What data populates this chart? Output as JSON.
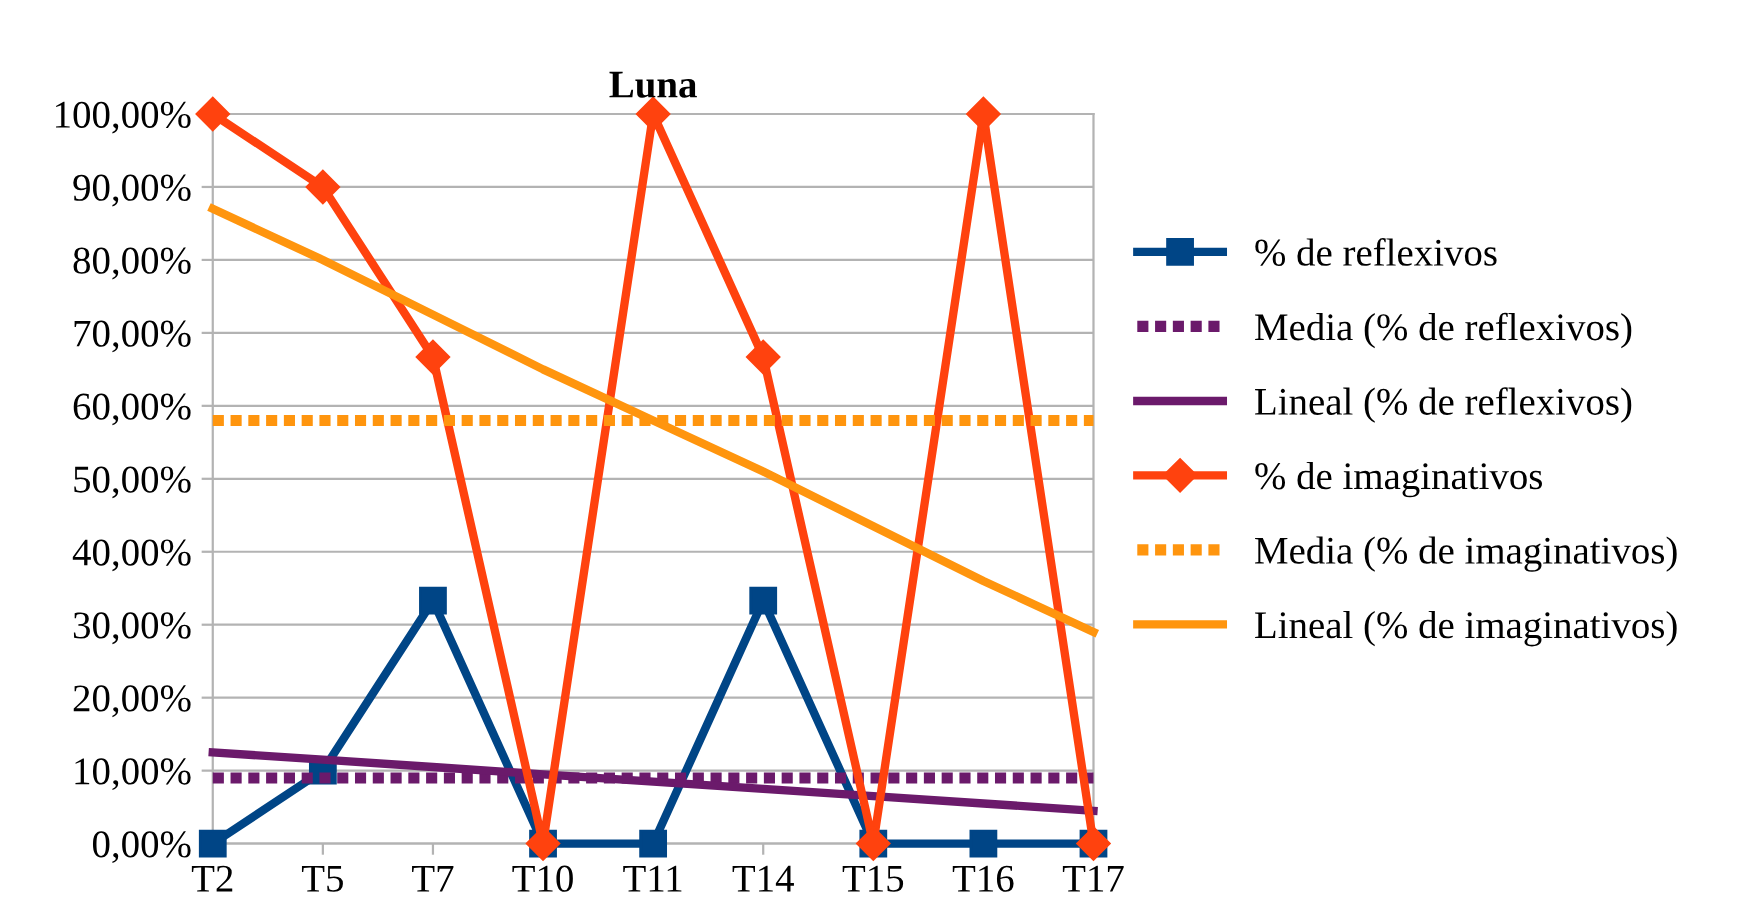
{
  "chart_data": {
    "type": "line",
    "title": "Luna",
    "categories": [
      "T2",
      "T5",
      "T7",
      "T10",
      "T11",
      "T14",
      "T15",
      "T16",
      "T17"
    ],
    "series": [
      {
        "name": "% de reflexivos",
        "color": "#004586",
        "marker": "square",
        "line_style": "solid",
        "values": [
          0,
          10,
          33.3,
          0,
          0,
          33.3,
          0,
          0,
          0
        ]
      },
      {
        "name": "Media (% de reflexivos)",
        "color": "#6b1a6b",
        "marker": "none",
        "line_style": "dotted",
        "values": [
          9,
          9,
          9,
          9,
          9,
          9,
          9,
          9,
          9
        ]
      },
      {
        "name": "Lineal (% de reflexivos)",
        "color": "#6b1a6b",
        "marker": "none",
        "line_style": "solid",
        "values": [
          12.5,
          11.5,
          10.5,
          9.5,
          8.5,
          7.5,
          6.5,
          5.5,
          4.5
        ]
      },
      {
        "name": "% de imaginativos",
        "color": "#ff420e",
        "marker": "diamond",
        "line_style": "solid",
        "values": [
          100,
          90,
          66.7,
          0,
          100,
          66.7,
          0,
          100,
          0
        ]
      },
      {
        "name": "Media (% de imaginativos)",
        "color": "#ff950e",
        "marker": "none",
        "line_style": "dotted",
        "values": [
          58,
          58,
          58,
          58,
          58,
          58,
          58,
          58,
          58
        ]
      },
      {
        "name": "Lineal (% de imaginativos)",
        "color": "#ff950e",
        "marker": "none",
        "line_style": "solid",
        "values": [
          87,
          80,
          72.5,
          65,
          58,
          51,
          43.5,
          36,
          29
        ]
      }
    ],
    "ylim": [
      0,
      100
    ],
    "yticks": [
      {
        "value": 0,
        "label": "0,00%"
      },
      {
        "value": 10,
        "label": "10,00%"
      },
      {
        "value": 20,
        "label": "20,00%"
      },
      {
        "value": 30,
        "label": "30,00%"
      },
      {
        "value": 40,
        "label": "40,00%"
      },
      {
        "value": 50,
        "label": "50,00%"
      },
      {
        "value": 60,
        "label": "60,00%"
      },
      {
        "value": 70,
        "label": "70,00%"
      },
      {
        "value": 80,
        "label": "80,00%"
      },
      {
        "value": 90,
        "label": "90,00%"
      },
      {
        "value": 100,
        "label": "100,00%"
      }
    ],
    "grid": "y",
    "legend": "right"
  }
}
